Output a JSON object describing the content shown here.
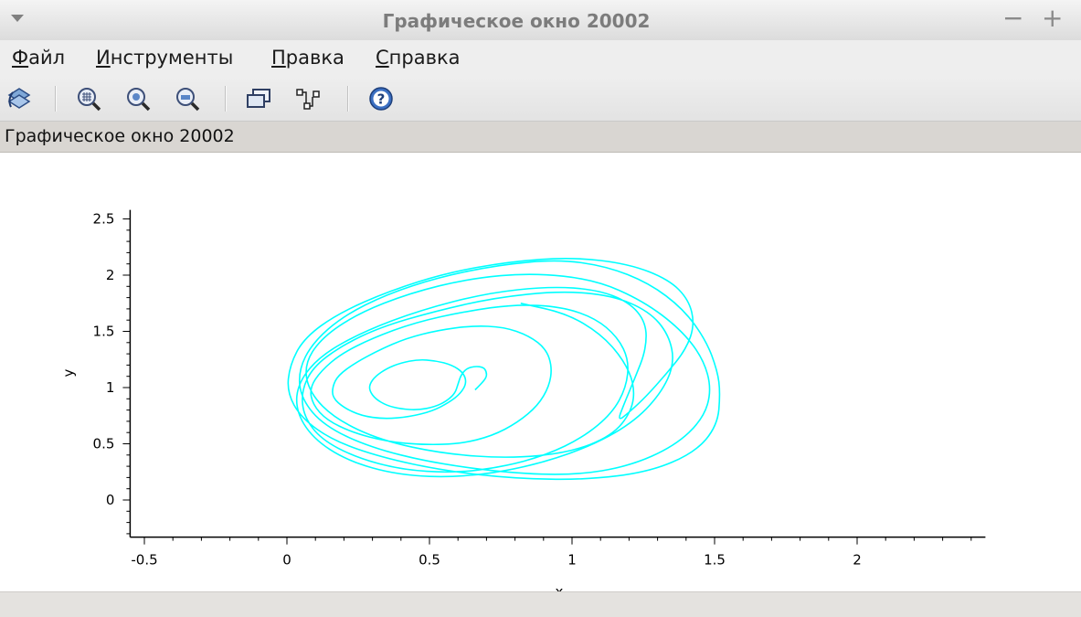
{
  "window": {
    "title": "Графическое окно 20002",
    "minimize_glyph": "−",
    "maximize_glyph": "+"
  },
  "menu": [
    {
      "mnemonic": "Ф",
      "rest": "айл"
    },
    {
      "mnemonic": "И",
      "rest": "нструменты"
    },
    {
      "mnemonic": "П",
      "rest": "равка"
    },
    {
      "mnemonic": "С",
      "rest": "правка"
    }
  ],
  "toolbar": {
    "icons": [
      "rotate-icon",
      "zoom-area-icon",
      "zoom-in-icon",
      "zoom-out-icon",
      "datatip-icon",
      "curve-edit-icon",
      "help-icon"
    ],
    "help_glyph": "?"
  },
  "info": {
    "label": "Графическое окно 20002"
  },
  "colors": {
    "curve": "#00ffff",
    "axis": "#000000"
  },
  "chart_data": {
    "type": "line",
    "title": "",
    "xlabel": "x",
    "ylabel": "y",
    "xlim": [
      -0.55,
      2.45
    ],
    "ylim": [
      -0.33,
      2.58
    ],
    "xticks": [
      -0.5,
      0,
      0.5,
      1,
      1.5,
      2
    ],
    "xtick_labels": [
      "-0.5",
      "0",
      "0.5",
      "1",
      "1.5",
      "2"
    ],
    "yticks": [
      0,
      0.5,
      1,
      1.5,
      2,
      2.5
    ],
    "ytick_labels": [
      "0",
      "0.5",
      "1",
      "1.5",
      "2",
      "2.5"
    ],
    "grid": false,
    "series": [
      {
        "description": "phase trajectory spiralling out from the centre to the outer limit cycle",
        "points": [
          [
            0.66,
            0.98
          ],
          [
            0.68,
            1.03
          ],
          [
            0.7,
            1.09
          ],
          [
            0.7,
            1.14
          ],
          [
            0.69,
            1.18
          ],
          [
            0.66,
            1.19
          ],
          [
            0.63,
            1.17
          ],
          [
            0.61,
            1.11
          ],
          [
            0.6,
            1.03
          ],
          [
            0.59,
            0.95
          ],
          [
            0.56,
            0.88
          ],
          [
            0.52,
            0.83
          ],
          [
            0.46,
            0.8
          ],
          [
            0.4,
            0.81
          ],
          [
            0.35,
            0.84
          ],
          [
            0.31,
            0.9
          ],
          [
            0.29,
            0.97
          ],
          [
            0.29,
            1.03
          ],
          [
            0.31,
            1.1
          ],
          [
            0.35,
            1.17
          ],
          [
            0.4,
            1.22
          ],
          [
            0.46,
            1.25
          ],
          [
            0.52,
            1.24
          ],
          [
            0.58,
            1.2
          ],
          [
            0.62,
            1.13
          ],
          [
            0.63,
            1.04
          ],
          [
            0.61,
            0.95
          ],
          [
            0.57,
            0.87
          ],
          [
            0.51,
            0.79
          ],
          [
            0.43,
            0.74
          ],
          [
            0.34,
            0.72
          ],
          [
            0.26,
            0.75
          ],
          [
            0.2,
            0.82
          ],
          [
            0.16,
            0.91
          ],
          [
            0.16,
            1.01
          ],
          [
            0.18,
            1.11
          ],
          [
            0.24,
            1.22
          ],
          [
            0.32,
            1.33
          ],
          [
            0.42,
            1.44
          ],
          [
            0.53,
            1.51
          ],
          [
            0.65,
            1.55
          ],
          [
            0.76,
            1.54
          ],
          [
            0.85,
            1.46
          ],
          [
            0.91,
            1.34
          ],
          [
            0.93,
            1.18
          ],
          [
            0.92,
            1.01
          ],
          [
            0.88,
            0.84
          ],
          [
            0.81,
            0.69
          ],
          [
            0.72,
            0.57
          ],
          [
            0.61,
            0.5
          ],
          [
            0.48,
            0.49
          ],
          [
            0.35,
            0.52
          ],
          [
            0.23,
            0.6
          ],
          [
            0.14,
            0.71
          ],
          [
            0.09,
            0.85
          ],
          [
            0.08,
            1.0
          ],
          [
            0.12,
            1.15
          ],
          [
            0.19,
            1.3
          ],
          [
            0.3,
            1.44
          ],
          [
            0.45,
            1.58
          ],
          [
            0.63,
            1.68
          ],
          [
            0.8,
            1.74
          ],
          [
            0.96,
            1.72
          ],
          [
            1.08,
            1.62
          ],
          [
            1.16,
            1.45
          ],
          [
            1.2,
            1.24
          ],
          [
            1.19,
            1.0
          ],
          [
            1.14,
            0.77
          ],
          [
            1.04,
            0.56
          ],
          [
            0.91,
            0.4
          ],
          [
            0.75,
            0.29
          ],
          [
            0.58,
            0.24
          ],
          [
            0.4,
            0.27
          ],
          [
            0.24,
            0.38
          ],
          [
            0.12,
            0.54
          ],
          [
            0.06,
            0.74
          ],
          [
            0.05,
            0.96
          ],
          [
            0.09,
            1.18
          ],
          [
            0.19,
            1.37
          ],
          [
            0.33,
            1.54
          ],
          [
            0.52,
            1.68
          ],
          [
            0.73,
            1.8
          ],
          [
            0.96,
            1.86
          ],
          [
            1.14,
            1.82
          ],
          [
            1.27,
            1.68
          ],
          [
            1.34,
            1.47
          ],
          [
            1.36,
            1.21
          ],
          [
            1.31,
            0.94
          ],
          [
            1.21,
            0.68
          ],
          [
            1.05,
            0.46
          ],
          [
            0.84,
            0.29
          ],
          [
            0.61,
            0.2
          ],
          [
            0.39,
            0.22
          ],
          [
            0.21,
            0.35
          ],
          [
            0.09,
            0.55
          ],
          [
            0.03,
            0.8
          ],
          [
            0.04,
            1.05
          ],
          [
            0.12,
            1.29
          ],
          [
            0.27,
            1.5
          ],
          [
            0.47,
            1.69
          ],
          [
            0.7,
            1.84
          ],
          [
            0.92,
            1.9
          ],
          [
            1.09,
            1.87
          ],
          [
            1.2,
            1.76
          ],
          [
            1.26,
            1.58
          ],
          [
            1.26,
            1.34
          ],
          [
            1.22,
            1.08
          ],
          [
            1.18,
            0.84
          ],
          [
            1.16,
            0.7
          ],
          [
            1.2,
            0.78
          ],
          [
            1.26,
            0.92
          ],
          [
            1.33,
            1.12
          ],
          [
            1.4,
            1.34
          ],
          [
            1.43,
            1.56
          ],
          [
            1.41,
            1.78
          ],
          [
            1.34,
            1.96
          ],
          [
            1.2,
            2.1
          ],
          [
            1.0,
            2.16
          ],
          [
            0.78,
            2.12
          ],
          [
            0.56,
            2.02
          ],
          [
            0.36,
            1.86
          ],
          [
            0.18,
            1.66
          ],
          [
            0.06,
            1.44
          ],
          [
            0.01,
            1.2
          ],
          [
            0.0,
            0.96
          ],
          [
            0.05,
            0.73
          ],
          [
            0.16,
            0.53
          ],
          [
            0.33,
            0.38
          ],
          [
            0.55,
            0.26
          ],
          [
            0.8,
            0.19
          ],
          [
            1.05,
            0.18
          ],
          [
            1.27,
            0.25
          ],
          [
            1.43,
            0.42
          ],
          [
            1.51,
            0.66
          ],
          [
            1.52,
            0.95
          ],
          [
            1.51,
            1.15
          ],
          [
            1.47,
            1.42
          ],
          [
            1.39,
            1.7
          ],
          [
            1.27,
            1.93
          ],
          [
            1.12,
            2.08
          ],
          [
            0.95,
            2.14
          ],
          [
            0.74,
            2.09
          ],
          [
            0.53,
            1.98
          ],
          [
            0.35,
            1.83
          ],
          [
            0.2,
            1.64
          ],
          [
            0.09,
            1.4
          ],
          [
            0.04,
            1.15
          ],
          [
            0.05,
            0.9
          ],
          [
            0.13,
            0.66
          ],
          [
            0.29,
            0.47
          ],
          [
            0.51,
            0.33
          ],
          [
            0.78,
            0.24
          ],
          [
            1.01,
            0.22
          ],
          [
            1.2,
            0.3
          ],
          [
            1.36,
            0.48
          ],
          [
            1.46,
            0.72
          ],
          [
            1.49,
            0.98
          ],
          [
            1.46,
            1.26
          ],
          [
            1.38,
            1.52
          ],
          [
            1.25,
            1.77
          ],
          [
            1.08,
            1.96
          ],
          [
            0.86,
            2.02
          ],
          [
            0.64,
            1.97
          ],
          [
            0.43,
            1.84
          ],
          [
            0.25,
            1.66
          ],
          [
            0.12,
            1.44
          ],
          [
            0.06,
            1.2
          ],
          [
            0.08,
            0.95
          ],
          [
            0.17,
            0.72
          ],
          [
            0.33,
            0.53
          ],
          [
            0.55,
            0.41
          ],
          [
            0.78,
            0.37
          ],
          [
            0.99,
            0.42
          ],
          [
            1.14,
            0.57
          ],
          [
            1.21,
            0.79
          ],
          [
            1.22,
            1.02
          ],
          [
            1.18,
            1.25
          ],
          [
            1.1,
            1.48
          ],
          [
            0.98,
            1.66
          ],
          [
            0.82,
            1.75
          ]
        ]
      }
    ]
  }
}
